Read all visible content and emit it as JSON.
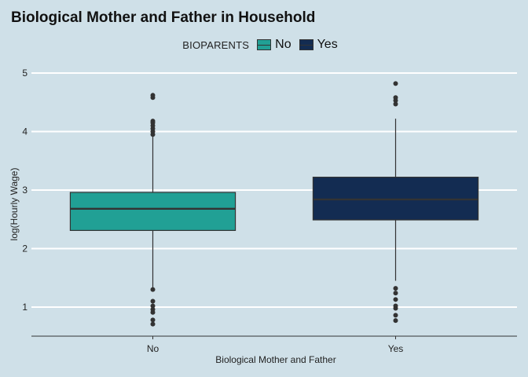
{
  "chart_data": {
    "type": "box",
    "title": "Biological Mother and Father in Household",
    "xlabel": "Biological Mother and Father",
    "ylabel": "log(Hourly Wage)",
    "ylim": [
      0.5,
      5.05
    ],
    "yticks": [
      1,
      2,
      3,
      4,
      5
    ],
    "grid": "horizontal",
    "legend": {
      "title": "BIOPARENTS",
      "position": "top",
      "entries": [
        "No",
        "Yes"
      ]
    },
    "categories": [
      "No",
      "Yes"
    ],
    "series": [
      {
        "name": "No",
        "color": "#21a095",
        "q1": 2.31,
        "median": 2.68,
        "q3": 2.96,
        "whisker_low": 1.32,
        "whisker_high": 3.94,
        "outliers": [
          0.71,
          0.78,
          0.91,
          0.96,
          1.02,
          1.1,
          1.3,
          3.95,
          4.0,
          4.05,
          4.1,
          4.15,
          4.18,
          4.58,
          4.62
        ]
      },
      {
        "name": "Yes",
        "color": "#132c52",
        "q1": 2.49,
        "median": 2.84,
        "q3": 3.22,
        "whisker_low": 1.45,
        "whisker_high": 4.22,
        "outliers": [
          0.77,
          0.86,
          0.98,
          1.02,
          1.13,
          1.24,
          1.32,
          4.47,
          4.53,
          4.58,
          4.82
        ]
      }
    ]
  }
}
